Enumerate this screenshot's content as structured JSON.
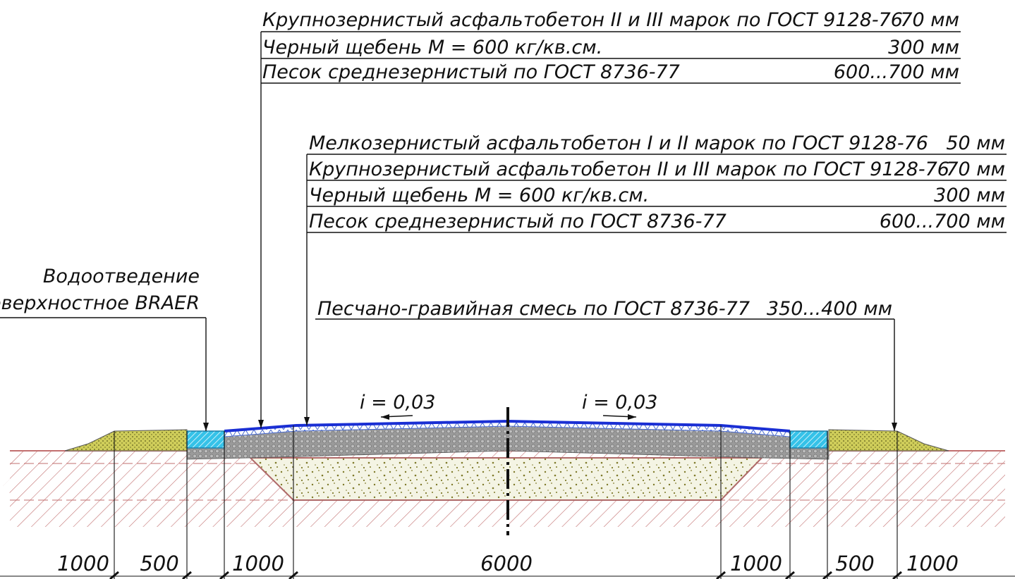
{
  "callouts": {
    "shoulder_layers": [
      {
        "text": "Крупнозернистый асфальтобетон II и III марок по ГОСТ 9128-76",
        "value": "70 мм"
      },
      {
        "text": "Черный щебень М = 600 кг/кв.см.",
        "value": "300 мм"
      },
      {
        "text": "Песок среднезернистый по ГОСТ 8736-77",
        "value": "600...700 мм"
      }
    ],
    "road_layers": [
      {
        "text": "Мелкозернистый асфальтобетон I и II марок по ГОСТ 9128-76",
        "value": "50 мм"
      },
      {
        "text": "Крупнозернистый асфальтобетон II и III марок по ГОСТ 9128-76",
        "value": "70 мм"
      },
      {
        "text": "Черный щебень М = 600 кг/кв.см.",
        "value": "300 мм"
      },
      {
        "text": "Песок среднезернистый по ГОСТ 8736-77",
        "value": "600...700 мм"
      }
    ],
    "drainage": {
      "line1": "Водоотведение",
      "line2": "поверхностное BRAER"
    },
    "gravel": {
      "text": "Песчано-гравийная смесь по ГОСТ 8736-77",
      "value": "350...400 мм"
    }
  },
  "slopes": {
    "left": "i = 0,03",
    "right": "i = 0,03"
  },
  "dimensions": [
    "1000",
    "500",
    "1000",
    "6000",
    "1000",
    "500",
    "1000"
  ],
  "colors": {
    "asphalt_top": "#1a2fd4",
    "crushed_stone": "#8d8d8d",
    "sand": "#f3f3e2",
    "sand_speckle": "#7f7a2a",
    "gravel_mix": "#c9c85a",
    "drain_channel": "#35c2e8",
    "soil_hatch": "#c26f6f",
    "mesh": "#4b6cd0"
  }
}
